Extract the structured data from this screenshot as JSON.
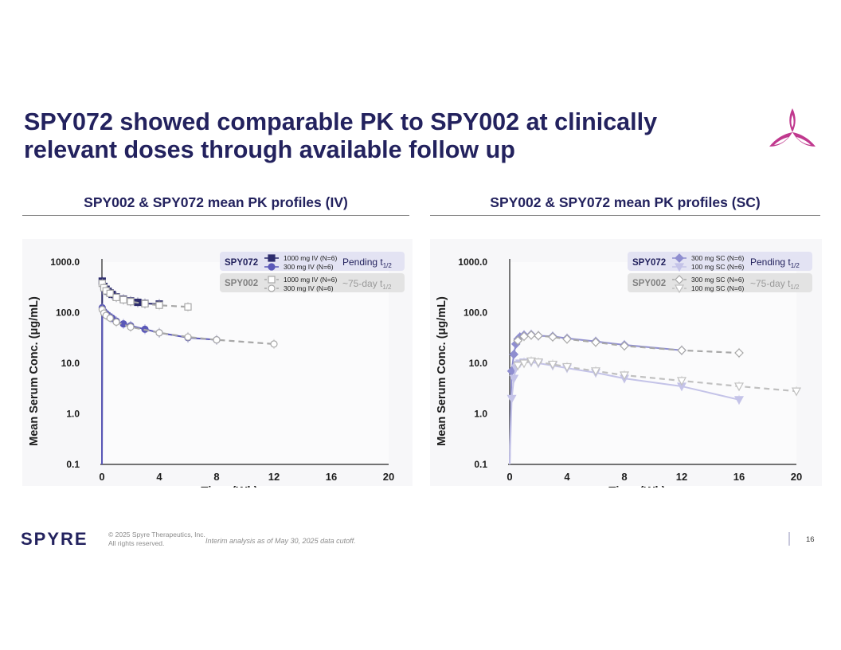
{
  "slide": {
    "title_line1": "SPY072 showed comparable PK to SPY002 at clinically",
    "title_line2": "relevant doses through available follow up",
    "left_heading": "SPY002 & SPY072 mean PK profiles (IV)",
    "right_heading": "SPY002 & SPY072 mean PK profiles (SC)",
    "brand": "SPYRE",
    "copyright_line1": "© 2025 Spyre Therapeutics, Inc.",
    "copyright_line2": "All rights reserved.",
    "footnote": "Interim analysis as of May 30, 2025 data cutoff.",
    "page_number": "16",
    "accent_color": "#c0388e",
    "title_color": "#23225e"
  },
  "chart_data": [
    {
      "type": "line",
      "title": "SPY002 & SPY072 mean PK profiles (IV)",
      "xlabel": "Time (Wk)",
      "ylabel": "Mean Serum Conc. (μg/mL)",
      "yscale": "log",
      "xlim": [
        0,
        20
      ],
      "ylim": [
        0.1,
        1000
      ],
      "xticks": [
        "0",
        "4",
        "8",
        "12",
        "16",
        "20"
      ],
      "xtick_values": [
        0,
        4,
        8,
        12,
        16,
        20
      ],
      "yticks": [
        "1000.0",
        "100.0",
        "10.0",
        "1.0",
        "0.1"
      ],
      "ytick_values": [
        1000,
        100,
        10,
        1,
        0.1
      ],
      "legend": {
        "spy072_label": "SPY072",
        "spy072_note": "Pending t",
        "spy072_sub": "1/2",
        "spy002_label": "SPY002",
        "spy002_note": "~75-day t",
        "spy002_sub": "1/2"
      },
      "series": [
        {
          "name": "1000 mg IV (N=6)",
          "group": "SPY072",
          "color": "#2d2c6e",
          "marker": "square",
          "filled": true,
          "dashed": false,
          "x": [
            0,
            0.02,
            0.14,
            0.29,
            0.43,
            0.57,
            0.71,
            1,
            1.5,
            2,
            2.5,
            3,
            4
          ],
          "y": [
            0.1,
            420,
            330,
            290,
            265,
            245,
            230,
            205,
            185,
            170,
            160,
            152,
            148
          ]
        },
        {
          "name": "300 mg IV (N=6)",
          "group": "SPY072",
          "color": "#5a58b8",
          "marker": "circle",
          "filled": true,
          "dashed": false,
          "x": [
            0,
            0.02,
            0.14,
            0.29,
            0.43,
            0.57,
            0.71,
            1,
            1.5,
            2,
            3,
            4,
            6,
            8
          ],
          "y": [
            0.1,
            125,
            105,
            95,
            88,
            82,
            78,
            68,
            60,
            55,
            47,
            40,
            32,
            29
          ]
        },
        {
          "name": "1000 mg IV (N=6)",
          "group": "SPY002",
          "color": "#a8a8a8",
          "marker": "square",
          "filled": false,
          "dashed": true,
          "x": [
            0.02,
            0.14,
            0.29,
            0.57,
            1,
            1.5,
            2,
            3,
            4,
            6
          ],
          "y": [
            380,
            310,
            270,
            240,
            200,
            180,
            165,
            150,
            140,
            130
          ]
        },
        {
          "name": "300 mg IV (N=6)",
          "group": "SPY002",
          "color": "#a8a8a8",
          "marker": "circle",
          "filled": false,
          "dashed": true,
          "x": [
            0.02,
            0.14,
            0.29,
            0.57,
            1,
            2,
            4,
            6,
            8,
            12
          ],
          "y": [
            115,
            98,
            88,
            78,
            65,
            52,
            40,
            33,
            29,
            24
          ]
        }
      ]
    },
    {
      "type": "line",
      "title": "SPY002 & SPY072 mean PK profiles (SC)",
      "xlabel": "Time (Wk)",
      "ylabel": "Mean Serum Conc. (μg/mL)",
      "yscale": "log",
      "xlim": [
        0,
        20
      ],
      "ylim": [
        0.1,
        1000
      ],
      "xticks": [
        "0",
        "4",
        "8",
        "12",
        "16",
        "20"
      ],
      "xtick_values": [
        0,
        4,
        8,
        12,
        16,
        20
      ],
      "yticks": [
        "1000.0",
        "100.0",
        "10.0",
        "1.0",
        "0.1"
      ],
      "ytick_values": [
        1000,
        100,
        10,
        1,
        0.1
      ],
      "legend": {
        "spy072_label": "SPY072",
        "spy072_note": "Pending t",
        "spy072_sub": "1/2",
        "spy002_label": "SPY002",
        "spy002_note": "~75-day t",
        "spy002_sub": "1/2"
      },
      "series": [
        {
          "name": "300 mg SC (N=6)",
          "group": "SPY072",
          "color": "#8f8ed0",
          "marker": "diamond",
          "filled": true,
          "dashed": false,
          "x": [
            0,
            0.14,
            0.29,
            0.43,
            0.57,
            0.71,
            1,
            1.5,
            2,
            3,
            4,
            6,
            8,
            12
          ],
          "y": [
            0.1,
            7,
            15,
            24,
            30,
            33,
            36,
            37,
            35,
            34,
            31,
            27,
            23,
            18
          ]
        },
        {
          "name": "100 mg SC (N=6)",
          "group": "SPY072",
          "color": "#c4c3e8",
          "marker": "triangle-down",
          "filled": true,
          "dashed": false,
          "x": [
            0,
            0.14,
            0.29,
            0.43,
            0.57,
            0.71,
            1,
            1.5,
            2,
            3,
            4,
            6,
            8,
            12,
            16
          ],
          "y": [
            0.1,
            2,
            5,
            8,
            9.5,
            10,
            10.5,
            10.5,
            10,
            9,
            8,
            6.5,
            5,
            3.5,
            1.9
          ]
        },
        {
          "name": "300 mg SC (N=6)",
          "group": "SPY002",
          "color": "#a8a8a8",
          "marker": "diamond",
          "filled": false,
          "dashed": true,
          "x": [
            0.57,
            1,
            1.5,
            2,
            3,
            4,
            6,
            8,
            12,
            16
          ],
          "y": [
            28,
            34,
            36,
            35,
            33,
            30,
            26,
            22,
            18,
            16
          ]
        },
        {
          "name": "100 mg SC (N=6)",
          "group": "SPY002",
          "color": "#c0c0c0",
          "marker": "triangle-down",
          "filled": false,
          "dashed": true,
          "x": [
            0.57,
            1,
            1.5,
            2,
            3,
            4,
            6,
            8,
            12,
            16,
            20
          ],
          "y": [
            9,
            10,
            11,
            10.5,
            9.5,
            8.5,
            7,
            5.8,
            4.5,
            3.5,
            2.8
          ]
        }
      ]
    }
  ]
}
